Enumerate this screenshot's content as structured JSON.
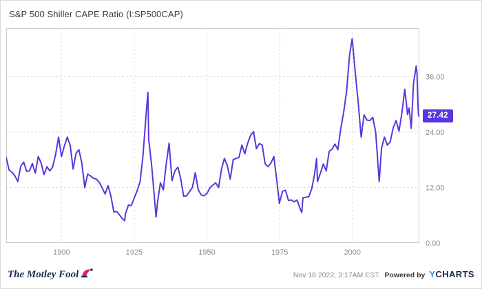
{
  "header": {
    "title": "S&P 500 Shiller CAPE Ratio (I:SP500CAP)"
  },
  "chart_data": {
    "type": "line",
    "title": "S&P 500 Shiller CAPE Ratio (I:SP500CAP)",
    "series_name": "S&P 500 Shiller CAPE Ratio",
    "line_color": "#5b35dd",
    "grid_color": "#dedede",
    "border_color": "#cccccc",
    "tick_label_color": "#8c8c8c",
    "grid": "dashed",
    "legend": "none",
    "x_range": [
      1881,
      2023
    ],
    "ylim": [
      0,
      46.5
    ],
    "x_ticks": [
      1900,
      1925,
      1950,
      1975,
      2000
    ],
    "y_ticks": [
      0,
      12,
      24,
      36
    ],
    "y_tick_labels": [
      "0.00",
      "12.00",
      "24.00",
      "36.00"
    ],
    "current_value": 27.42,
    "current_label": "27.42",
    "points": [
      [
        1881,
        18.5
      ],
      [
        1882,
        15.8
      ],
      [
        1883,
        15.3
      ],
      [
        1884,
        14.5
      ],
      [
        1885,
        13.3
      ],
      [
        1886,
        16.6
      ],
      [
        1887,
        17.5
      ],
      [
        1888,
        15.5
      ],
      [
        1889,
        15.6
      ],
      [
        1890,
        17.2
      ],
      [
        1891,
        15.1
      ],
      [
        1892,
        18.7
      ],
      [
        1893,
        17.3
      ],
      [
        1894,
        14.8
      ],
      [
        1895,
        16.5
      ],
      [
        1896,
        15.6
      ],
      [
        1897,
        16.5
      ],
      [
        1898,
        19.2
      ],
      [
        1899,
        22.9
      ],
      [
        1900,
        18.7
      ],
      [
        1901,
        21.0
      ],
      [
        1902,
        22.9
      ],
      [
        1903,
        21.1
      ],
      [
        1904,
        16.0
      ],
      [
        1905,
        19.4
      ],
      [
        1906,
        20.2
      ],
      [
        1907,
        17.2
      ],
      [
        1908,
        12.0
      ],
      [
        1909,
        14.9
      ],
      [
        1910,
        14.5
      ],
      [
        1911,
        14.0
      ],
      [
        1912,
        13.8
      ],
      [
        1913,
        13.1
      ],
      [
        1914,
        11.9
      ],
      [
        1915,
        10.6
      ],
      [
        1916,
        12.4
      ],
      [
        1917,
        10.1
      ],
      [
        1918,
        6.7
      ],
      [
        1919,
        6.8
      ],
      [
        1920,
        6.0
      ],
      [
        1921,
        5.2
      ],
      [
        1921.7,
        4.8
      ],
      [
        1922,
        6.3
      ],
      [
        1923,
        8.2
      ],
      [
        1924,
        8.1
      ],
      [
        1925,
        9.7
      ],
      [
        1926,
        11.3
      ],
      [
        1927,
        13.2
      ],
      [
        1928,
        18.8
      ],
      [
        1929,
        27.1
      ],
      [
        1929.7,
        32.6
      ],
      [
        1930,
        22.3
      ],
      [
        1931,
        16.7
      ],
      [
        1932,
        9.3
      ],
      [
        1932.5,
        5.6
      ],
      [
        1933,
        8.7
      ],
      [
        1934,
        13.0
      ],
      [
        1935,
        11.5
      ],
      [
        1936,
        17.1
      ],
      [
        1937,
        21.6
      ],
      [
        1938,
        13.5
      ],
      [
        1939,
        15.6
      ],
      [
        1940,
        16.4
      ],
      [
        1941,
        13.9
      ],
      [
        1942,
        10.1
      ],
      [
        1943,
        10.2
      ],
      [
        1944,
        11.1
      ],
      [
        1945,
        12.0
      ],
      [
        1946,
        15.2
      ],
      [
        1947,
        11.5
      ],
      [
        1948,
        10.4
      ],
      [
        1949,
        10.2
      ],
      [
        1950,
        10.7
      ],
      [
        1951,
        11.9
      ],
      [
        1952,
        12.5
      ],
      [
        1953,
        13.0
      ],
      [
        1954,
        12.0
      ],
      [
        1955,
        16.0
      ],
      [
        1956,
        18.3
      ],
      [
        1957,
        16.7
      ],
      [
        1958,
        13.8
      ],
      [
        1959,
        18.0
      ],
      [
        1960,
        18.3
      ],
      [
        1961,
        18.5
      ],
      [
        1962,
        21.2
      ],
      [
        1963,
        19.3
      ],
      [
        1964,
        21.6
      ],
      [
        1965,
        23.3
      ],
      [
        1966,
        24.1
      ],
      [
        1967,
        20.4
      ],
      [
        1968,
        21.5
      ],
      [
        1969,
        21.2
      ],
      [
        1970,
        17.1
      ],
      [
        1971,
        16.5
      ],
      [
        1972,
        17.3
      ],
      [
        1973,
        18.7
      ],
      [
        1974,
        13.5
      ],
      [
        1974.9,
        8.5
      ],
      [
        1975,
        8.9
      ],
      [
        1976,
        11.2
      ],
      [
        1977,
        11.4
      ],
      [
        1978,
        9.2
      ],
      [
        1979,
        9.3
      ],
      [
        1980,
        8.9
      ],
      [
        1981,
        9.3
      ],
      [
        1982,
        7.4
      ],
      [
        1982.6,
        6.6
      ],
      [
        1983,
        9.8
      ],
      [
        1984,
        9.9
      ],
      [
        1985,
        10.0
      ],
      [
        1986,
        11.7
      ],
      [
        1987,
        14.9
      ],
      [
        1987.7,
        18.3
      ],
      [
        1988,
        13.3
      ],
      [
        1989,
        15.1
      ],
      [
        1990,
        17.1
      ],
      [
        1991,
        15.6
      ],
      [
        1992,
        19.8
      ],
      [
        1993,
        20.3
      ],
      [
        1994,
        21.4
      ],
      [
        1995,
        20.2
      ],
      [
        1996,
        24.8
      ],
      [
        1997,
        28.3
      ],
      [
        1998,
        32.9
      ],
      [
        1999,
        40.6
      ],
      [
        1999.9,
        44.2
      ],
      [
        2000,
        43.8
      ],
      [
        2001,
        36.8
      ],
      [
        2002,
        30.3
      ],
      [
        2003,
        22.9
      ],
      [
        2004,
        27.7
      ],
      [
        2005,
        26.6
      ],
      [
        2006,
        26.5
      ],
      [
        2007,
        27.2
      ],
      [
        2008,
        24.0
      ],
      [
        2009.2,
        13.3
      ],
      [
        2010,
        20.5
      ],
      [
        2011,
        22.9
      ],
      [
        2012,
        21.2
      ],
      [
        2013,
        21.9
      ],
      [
        2014,
        24.9
      ],
      [
        2015,
        26.5
      ],
      [
        2016,
        24.2
      ],
      [
        2017,
        28.1
      ],
      [
        2018,
        33.3
      ],
      [
        2018.95,
        27.8
      ],
      [
        2019.5,
        29.2
      ],
      [
        2020.2,
        24.8
      ],
      [
        2020.7,
        30.9
      ],
      [
        2021,
        34.5
      ],
      [
        2021.9,
        38.3
      ],
      [
        2022.2,
        36.9
      ],
      [
        2022.5,
        30.2
      ],
      [
        2022.7,
        28.0
      ],
      [
        2022.85,
        27.42
      ]
    ]
  },
  "footer": {
    "brand": "The Motley Fool",
    "timestamp": "Nov 18 2022, 3:17AM EST.",
    "powered_by": "Powered by",
    "ycharts_y": "Y",
    "ycharts_rest": "CHARTS"
  }
}
